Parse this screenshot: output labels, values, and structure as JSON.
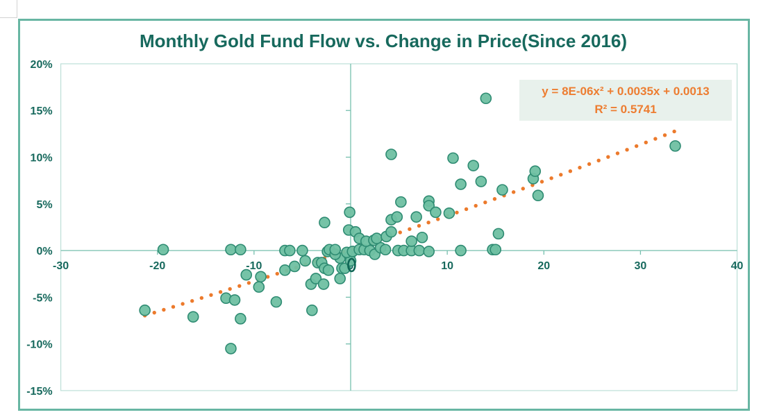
{
  "chart_data": {
    "type": "scatter",
    "title": "Monthly Gold Fund Flow vs. Change in Price(Since 2016)",
    "xlabel": "",
    "ylabel": "",
    "x_axis": {
      "min": -30,
      "max": 40,
      "tick_step": 10,
      "tick_labels": [
        "-30",
        "-20",
        "-10",
        "0",
        "10",
        "20",
        "30",
        "40"
      ]
    },
    "y_axis": {
      "min": -15,
      "max": 20,
      "tick_step": 5,
      "tick_labels": [
        "20%",
        "15%",
        "10%",
        "5%",
        "0%",
        "-5%",
        "-10%",
        "-15%"
      ],
      "tick_values": [
        20,
        15,
        10,
        5,
        0,
        -5,
        -10,
        -15
      ]
    },
    "grid": false,
    "series_name": "monthly-gold-fund-flow-vs-price-change",
    "points": [
      [
        -19.4,
        0.1
      ],
      [
        -12.4,
        0.1
      ],
      [
        -11.4,
        0.1
      ],
      [
        -10.8,
        -2.6
      ],
      [
        -9.3,
        -2.8
      ],
      [
        -9.5,
        -3.9
      ],
      [
        -12.9,
        -5.1
      ],
      [
        -12.0,
        -5.3
      ],
      [
        -7.7,
        -5.5
      ],
      [
        -21.3,
        -6.4
      ],
      [
        -16.3,
        -7.1
      ],
      [
        -11.4,
        -7.3
      ],
      [
        -12.4,
        -10.5
      ],
      [
        -6.8,
        -2.1
      ],
      [
        -5.8,
        -1.7
      ],
      [
        -4.7,
        -1.1
      ],
      [
        -4.1,
        -3.6
      ],
      [
        -4.0,
        -6.4
      ],
      [
        -3.6,
        -3.0
      ],
      [
        -3.4,
        -1.3
      ],
      [
        -3.0,
        -1.3
      ],
      [
        -2.8,
        -3.6
      ],
      [
        -2.7,
        -1.9
      ],
      [
        -2.3,
        -2.1
      ],
      [
        -1.1,
        -0.8
      ],
      [
        -1.1,
        -3.0
      ],
      [
        -0.9,
        -1.9
      ],
      [
        -0.6,
        -1.9
      ],
      [
        -0.1,
        -0.6
      ],
      [
        0.0,
        -1.1
      ],
      [
        -6.8,
        0.0
      ],
      [
        -6.3,
        0.0
      ],
      [
        -5.0,
        0.0
      ],
      [
        -2.4,
        -0.1
      ],
      [
        -2.2,
        0.1
      ],
      [
        -1.6,
        -0.4
      ],
      [
        -1.6,
        0.1
      ],
      [
        -0.4,
        -0.2
      ],
      [
        0.2,
        -0.1
      ],
      [
        0.9,
        0.1
      ],
      [
        1.4,
        0.1
      ],
      [
        2.0,
        0.0
      ],
      [
        2.5,
        -0.4
      ],
      [
        3.1,
        0.3
      ],
      [
        3.6,
        0.1
      ],
      [
        4.9,
        0.0
      ],
      [
        5.5,
        0.0
      ],
      [
        6.3,
        0.0
      ],
      [
        7.1,
        0.0
      ],
      [
        8.1,
        -0.1
      ],
      [
        11.4,
        0.0
      ],
      [
        14.7,
        0.1
      ],
      [
        15.0,
        0.1
      ],
      [
        -0.2,
        2.2
      ],
      [
        0.5,
        2.0
      ],
      [
        0.9,
        1.3
      ],
      [
        1.6,
        1.0
      ],
      [
        2.4,
        1.1
      ],
      [
        2.7,
        1.3
      ],
      [
        3.7,
        1.5
      ],
      [
        4.2,
        2.0
      ],
      [
        6.3,
        1.0
      ],
      [
        7.4,
        1.4
      ],
      [
        -2.7,
        3.0
      ],
      [
        -0.1,
        4.1
      ],
      [
        4.2,
        3.3
      ],
      [
        4.8,
        3.6
      ],
      [
        6.8,
        3.6
      ],
      [
        5.2,
        5.2
      ],
      [
        8.1,
        5.3
      ],
      [
        8.1,
        4.8
      ],
      [
        8.8,
        4.1
      ],
      [
        10.2,
        4.0
      ],
      [
        4.2,
        10.3
      ],
      [
        10.6,
        9.9
      ],
      [
        11.4,
        7.1
      ],
      [
        12.7,
        9.1
      ],
      [
        13.5,
        7.4
      ],
      [
        14.0,
        16.3
      ],
      [
        15.3,
        1.8
      ],
      [
        15.7,
        6.5
      ],
      [
        18.9,
        7.7
      ],
      [
        19.1,
        8.5
      ],
      [
        19.4,
        5.9
      ],
      [
        33.6,
        11.2
      ]
    ],
    "open_marker_point": [
      0.1,
      -1.55
    ],
    "trendline": {
      "kind": "polynomial-order-2-dotted",
      "coeff_a": 8e-06,
      "coeff_b": 0.0035,
      "coeff_c": 0.0013,
      "x_start": -21.3,
      "x_end": 33.5,
      "dot_count": 56
    },
    "legend": "none"
  },
  "annotation": {
    "equation": "y = 8E-06x² + 0.0035x + 0.0013",
    "r2": "R² = 0.5741"
  },
  "colors": {
    "title_text": "#17695d",
    "axis_text": "#17695d",
    "point_fill": "#6fc0a2",
    "point_stroke": "#2e8b72",
    "open_marker_stroke": "#0e6655",
    "trendline": "#ec7a2c",
    "equation_text": "#ed7d31",
    "equation_bg": "#e8f1ec",
    "plot_border": "#bcdfd7",
    "axis_line": "#76bfae",
    "chart_border": "#68b6a3",
    "worksheet_gridline": "#d2d2d2"
  }
}
